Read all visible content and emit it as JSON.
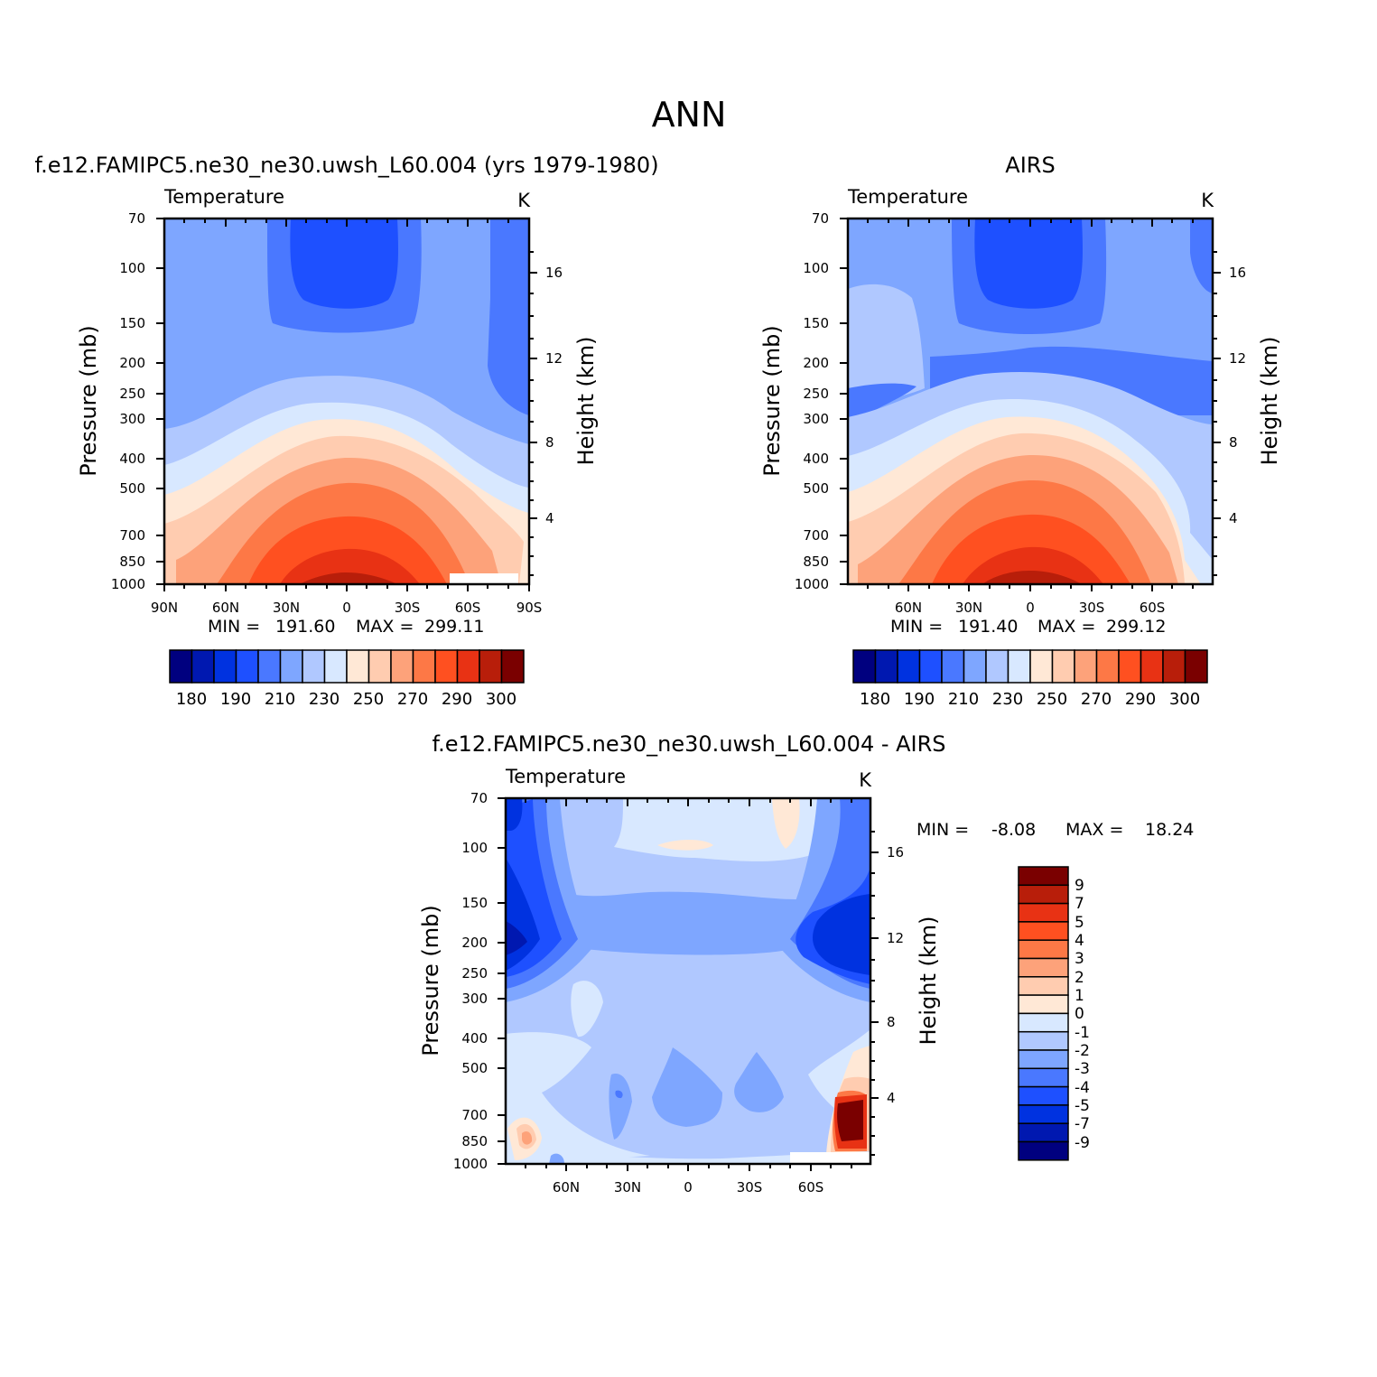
{
  "figure_title": "ANN",
  "colors": {
    "abs_scale": [
      "#00007f",
      "#0018b0",
      "#0032e0",
      "#1e50ff",
      "#4a78ff",
      "#7ea6ff",
      "#b0c8ff",
      "#d8e8ff",
      "#ffe8d6",
      "#ffccb0",
      "#fda27a",
      "#fd7846",
      "#ff5020",
      "#e83214",
      "#b81e0a",
      "#7a0000"
    ],
    "diff_scale": [
      "#7a0000",
      "#b81e0a",
      "#e83214",
      "#ff5020",
      "#fd7846",
      "#fda27a",
      "#ffccb0",
      "#ffe8d6",
      "#d8e8ff",
      "#b0c8ff",
      "#7ea6ff",
      "#4a78ff",
      "#1e50ff",
      "#0032e0",
      "#0018b0",
      "#00007f"
    ]
  },
  "chart_data": [
    {
      "type": "heatmap",
      "title": "f.e12.FAMIPC5.ne30_ne30.uwsh_L60.004 (yrs 1979-1980)",
      "left_label": "Temperature",
      "units": "K",
      "ylabel": "Pressure (mb)",
      "y2label": "Height (km)",
      "y_ticks": [
        "70",
        "100",
        "150",
        "200",
        "250",
        "300",
        "400",
        "500",
        "700",
        "850",
        "1000"
      ],
      "y2_ticks": [
        "16",
        "12",
        "8",
        "4"
      ],
      "x_ticks": [
        "90N",
        "60N",
        "30N",
        "0",
        "30S",
        "60S",
        "90S"
      ],
      "stats": {
        "min_label": "MIN =",
        "min": "191.60",
        "max_label": "MAX =",
        "max": "299.11"
      },
      "colorbar_labels": [
        "180",
        "190",
        "210",
        "230",
        "250",
        "270",
        "290",
        "300"
      ]
    },
    {
      "type": "heatmap",
      "title": "AIRS",
      "left_label": "Temperature",
      "units": "K",
      "ylabel": "Pressure (mb)",
      "y2label": "Height (km)",
      "y_ticks": [
        "70",
        "100",
        "150",
        "200",
        "250",
        "300",
        "400",
        "500",
        "700",
        "850",
        "1000"
      ],
      "y2_ticks": [
        "16",
        "12",
        "8",
        "4"
      ],
      "x_ticks": [
        "60N",
        "30N",
        "0",
        "30S",
        "60S"
      ],
      "stats": {
        "min_label": "MIN =",
        "min": "191.40",
        "max_label": "MAX =",
        "max": "299.12"
      },
      "colorbar_labels": [
        "180",
        "190",
        "210",
        "230",
        "250",
        "270",
        "290",
        "300"
      ]
    },
    {
      "type": "heatmap",
      "title": "f.e12.FAMIPC5.ne30_ne30.uwsh_L60.004 - AIRS",
      "left_label": "Temperature",
      "units": "K",
      "ylabel": "Pressure (mb)",
      "y2label": "Height (km)",
      "y_ticks": [
        "70",
        "100",
        "150",
        "200",
        "250",
        "300",
        "400",
        "500",
        "700",
        "850",
        "1000"
      ],
      "y2_ticks": [
        "16",
        "12",
        "8",
        "4"
      ],
      "x_ticks": [
        "60N",
        "30N",
        "0",
        "30S",
        "60S"
      ],
      "stats": {
        "min_label": "MIN =",
        "min": "-8.08",
        "max_label": "MAX =",
        "max": "18.24"
      },
      "colorbar_labels": [
        "9",
        "7",
        "5",
        "4",
        "3",
        "2",
        "1",
        "0",
        "-1",
        "-2",
        "-3",
        "-4",
        "-5",
        "-7",
        "-9"
      ]
    }
  ]
}
